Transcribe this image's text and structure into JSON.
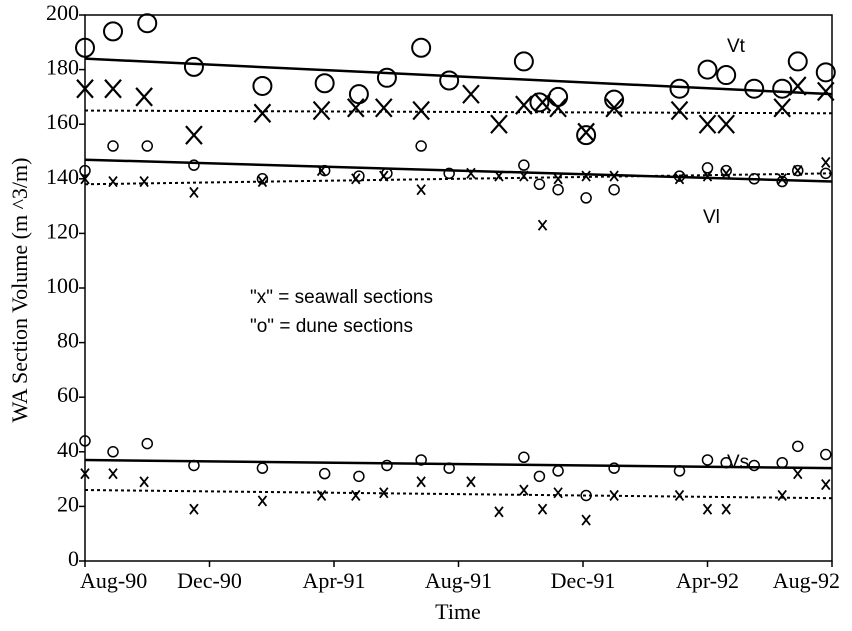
{
  "chart_data": {
    "type": "scatter",
    "y_label": "WA Section Volume (m ^3/m)",
    "x_label": "Time",
    "annotations": [
      "Vt",
      "Vl",
      "Vs",
      "\"x\" = seawall sections",
      "\"o\" = dune sections"
    ],
    "xlim": [
      0,
      24
    ],
    "xticks": [
      {
        "value": 0,
        "label": "Aug-90"
      },
      {
        "value": 4,
        "label": "Dec-90"
      },
      {
        "value": 8,
        "label": "Apr-91"
      },
      {
        "value": 12,
        "label": "Aug-91"
      },
      {
        "value": 16,
        "label": "Dec-91"
      },
      {
        "value": 20,
        "label": "Apr-92"
      },
      {
        "value": 24,
        "label": "Aug-92"
      }
    ],
    "ylim": [
      0,
      200
    ],
    "yticks": [
      0,
      20,
      40,
      60,
      80,
      100,
      120,
      140,
      160,
      180,
      200
    ],
    "color": "#000000",
    "series": [
      {
        "marker": "o",
        "size": "large",
        "x": [
          0,
          0.9,
          2,
          3.5,
          5.7,
          7.7,
          8.8,
          9.7,
          10.8,
          11.7,
          14.1,
          14.6,
          15.2,
          16.1,
          17,
          19.1,
          20,
          20.6,
          21.5,
          22.4,
          22.9,
          23.8
        ],
        "values": [
          188,
          194,
          197,
          181,
          174,
          175,
          171,
          177,
          188,
          176,
          183,
          168,
          170,
          156,
          169,
          173,
          180,
          178,
          173,
          173,
          183,
          179
        ]
      },
      {
        "marker": "x",
        "size": "large",
        "x": [
          0,
          0.9,
          1.9,
          3.5,
          5.7,
          7.6,
          8.7,
          9.6,
          10.8,
          12.4,
          13.3,
          14.1,
          14.7,
          15.2,
          16.1,
          17,
          19.1,
          20,
          20.6,
          22.4,
          22.9,
          23.8
        ],
        "values": [
          173,
          173,
          170,
          156,
          164,
          165,
          166,
          166,
          165,
          171,
          160,
          167,
          168,
          166,
          157,
          166,
          165,
          160,
          160,
          166,
          174,
          172
        ]
      },
      {
        "marker": "o",
        "size": "small",
        "x": [
          0,
          0.9,
          2,
          3.5,
          5.7,
          7.7,
          8.8,
          9.7,
          10.8,
          11.7,
          14.1,
          14.6,
          15.2,
          16.1,
          17,
          19.1,
          20,
          20.6,
          21.5,
          22.4,
          22.9,
          23.8
        ],
        "values": [
          143,
          152,
          152,
          145,
          140,
          143,
          141,
          142,
          152,
          142,
          145,
          138,
          136,
          133,
          136,
          141,
          144,
          143,
          140,
          139,
          143,
          142
        ]
      },
      {
        "marker": "x",
        "size": "small",
        "x": [
          0,
          0.9,
          1.9,
          3.5,
          5.7,
          7.6,
          8.7,
          9.6,
          10.8,
          12.4,
          13.3,
          14.1,
          14.7,
          15.2,
          16.1,
          17,
          19.1,
          20,
          20.6,
          22.4,
          22.9,
          23.8
        ],
        "values": [
          140,
          139,
          139,
          135,
          139,
          143,
          140,
          141,
          136,
          142,
          141,
          141,
          123,
          140,
          141,
          141,
          140,
          141,
          142,
          140,
          143,
          146
        ]
      },
      {
        "marker": "o",
        "size": "small",
        "x": [
          0,
          0.9,
          2,
          3.5,
          5.7,
          7.7,
          8.8,
          9.7,
          10.8,
          11.7,
          14.1,
          14.6,
          15.2,
          16.1,
          17,
          19.1,
          20,
          20.6,
          21.5,
          22.4,
          22.9,
          23.8
        ],
        "values": [
          44,
          40,
          43,
          35,
          34,
          32,
          31,
          35,
          37,
          34,
          38,
          31,
          33,
          24,
          34,
          33,
          37,
          36,
          35,
          36,
          42,
          39
        ]
      },
      {
        "marker": "x",
        "size": "small",
        "x": [
          0,
          0.9,
          1.9,
          3.5,
          5.7,
          7.6,
          8.7,
          9.6,
          10.8,
          12.4,
          13.3,
          14.1,
          14.7,
          15.2,
          16.1,
          17,
          19.1,
          20,
          20.6,
          22.4,
          22.9,
          23.8
        ],
        "values": [
          32,
          32,
          29,
          19,
          22,
          24,
          24,
          25,
          29,
          29,
          18,
          26,
          19,
          25,
          15,
          24,
          24,
          19,
          19,
          24,
          32,
          28
        ]
      }
    ],
    "trend_lines": [
      {
        "style": "solid",
        "x": [
          0,
          24
        ],
        "values": [
          184,
          171
        ]
      },
      {
        "style": "dotted",
        "x": [
          0,
          24
        ],
        "values": [
          165,
          164
        ]
      },
      {
        "style": "solid",
        "x": [
          0,
          24
        ],
        "values": [
          147,
          139
        ]
      },
      {
        "style": "dotted",
        "x": [
          0,
          24
        ],
        "values": [
          138,
          142
        ]
      },
      {
        "style": "solid",
        "x": [
          0,
          24
        ],
        "values": [
          37,
          34
        ]
      },
      {
        "style": "dotted",
        "x": [
          0,
          24
        ],
        "values": [
          26,
          23
        ]
      }
    ]
  }
}
